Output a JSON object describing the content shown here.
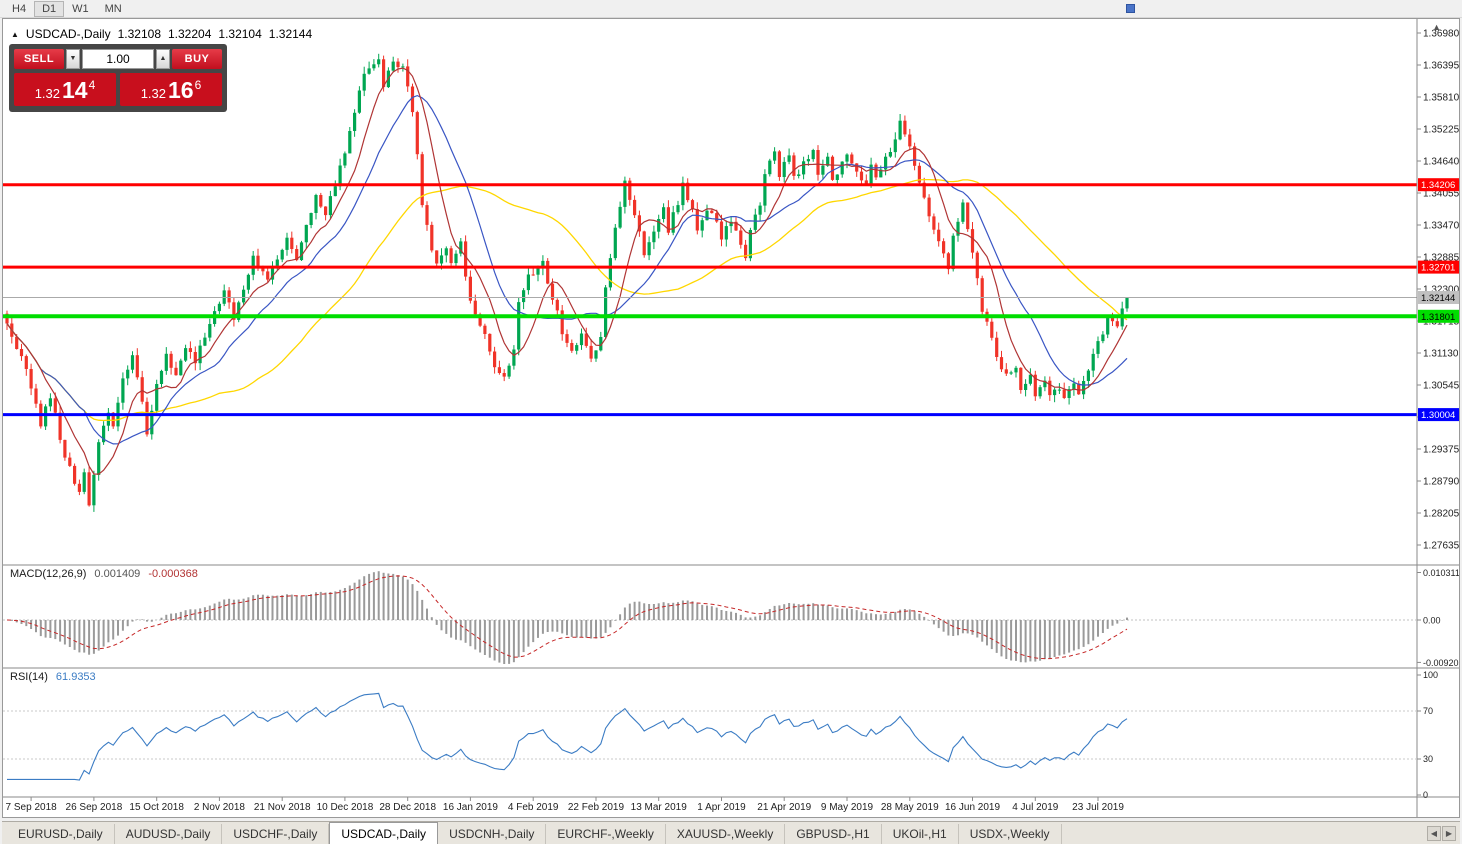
{
  "toolbar": {
    "timeframes": [
      {
        "label": "H4"
      },
      {
        "label": "D1"
      },
      {
        "label": "W1"
      },
      {
        "label": "MN"
      }
    ],
    "active_timeframe": "D1"
  },
  "window": {
    "title_symbol": "USDCAD-,Daily",
    "ohlc": {
      "open": "1.32108",
      "high": "1.32204",
      "low": "1.32104",
      "close": "1.32144"
    }
  },
  "trade_panel": {
    "sell_label": "SELL",
    "buy_label": "BUY",
    "volume": "1.00",
    "sell_price_main": "1.32",
    "sell_price_big": "14",
    "sell_price_sup": "4",
    "buy_price_main": "1.32",
    "buy_price_big": "16",
    "buy_price_sup": "6"
  },
  "price_axis": {
    "labels": [
      "1.36980",
      "1.36395",
      "1.35810",
      "1.35225",
      "1.34640",
      "1.34055",
      "1.33470",
      "1.32885",
      "1.32300",
      "1.31715",
      "1.31130",
      "1.30545",
      "1.29960",
      "1.29375",
      "1.28790",
      "1.28205",
      "1.27635"
    ]
  },
  "levels": [
    {
      "price": 1.34206,
      "label": "1.34206",
      "color": "#ff0000",
      "width": 3,
      "text": "#ffffff"
    },
    {
      "price": 1.32701,
      "label": "1.32701",
      "color": "#ff0000",
      "width": 3,
      "text": "#ffffff"
    },
    {
      "price": 1.31801,
      "label": "1.31801",
      "color": "#00dd00",
      "width": 4,
      "text": "#000000"
    },
    {
      "price": 1.30004,
      "label": "1.30004",
      "color": "#0000ff",
      "width": 3,
      "text": "#ffffff"
    }
  ],
  "current_price": {
    "value": 1.32144,
    "label": "1.32144"
  },
  "date_axis": [
    "7 Sep 2018",
    "26 Sep 2018",
    "15 Oct 2018",
    "2 Nov 2018",
    "21 Nov 2018",
    "10 Dec 2018",
    "28 Dec 2018",
    "16 Jan 2019",
    "4 Feb 2019",
    "22 Feb 2019",
    "13 Mar 2019",
    "1 Apr 2019",
    "21 Apr 2019",
    "9 May 2019",
    "28 May 2019",
    "16 Jun 2019",
    "4 Jul 2019",
    "23 Jul 2019"
  ],
  "macd": {
    "name": "MACD(12,26,9)",
    "value_main": "0.001409",
    "value_signal": "-0.000368",
    "axis_labels": [
      {
        "v": 0.010311,
        "label": "0.010311"
      },
      {
        "v": 0,
        "label": "0.00"
      },
      {
        "v": -0.009203,
        "label": "-0.009203"
      }
    ]
  },
  "rsi": {
    "name": "RSI(14)",
    "value": "61.9353",
    "axis_labels": [
      {
        "v": 100,
        "label": "100"
      },
      {
        "v": 70,
        "label": "70"
      },
      {
        "v": 30,
        "label": "30"
      },
      {
        "v": 0,
        "label": "0"
      }
    ],
    "bands": [
      70,
      30
    ]
  },
  "tabs": [
    {
      "label": "EURUSD-,Daily",
      "active": false
    },
    {
      "label": "AUDUSD-,Daily",
      "active": false
    },
    {
      "label": "USDCHF-,Daily",
      "active": false
    },
    {
      "label": "USDCAD-,Daily",
      "active": true
    },
    {
      "label": "USDCNH-,Daily",
      "active": false
    },
    {
      "label": "EURCHF-,Weekly",
      "active": false
    },
    {
      "label": "XAUUSD-,Weekly",
      "active": false
    },
    {
      "label": "GBPUSD-,H1",
      "active": false
    },
    {
      "label": "UKOil-,H1",
      "active": false
    },
    {
      "label": "USDX-,Weekly",
      "active": false
    }
  ],
  "chart_data": {
    "type": "candlestick",
    "symbol": "USDCAD",
    "timeframe": "Daily",
    "candle_count": 233,
    "y_range": [
      1.274,
      1.3722
    ],
    "colors": {
      "up": "#00a651",
      "down": "#f03328"
    },
    "indicators": {
      "ma_fast": {
        "period": 8,
        "color": "#b03535"
      },
      "ma_mid": {
        "period": 17,
        "color": "#3a56c4"
      },
      "ma_slow": {
        "period": 45,
        "color": "#ffd700"
      },
      "macd": [
        12,
        26,
        9
      ],
      "rsi": 14
    },
    "price_anchors": [
      [
        0,
        1.3165
      ],
      [
        4,
        1.3085
      ],
      [
        7,
        1.2985
      ],
      [
        9,
        1.3035
      ],
      [
        12,
        1.2925
      ],
      [
        15,
        1.2855
      ],
      [
        16,
        1.2895
      ],
      [
        17,
        1.283
      ],
      [
        19,
        1.295
      ],
      [
        21,
        1.301
      ],
      [
        22,
        1.2985
      ],
      [
        24,
        1.306
      ],
      [
        26,
        1.3115
      ],
      [
        28,
        1.302
      ],
      [
        29,
        1.2965
      ],
      [
        31,
        1.306
      ],
      [
        33,
        1.3105
      ],
      [
        35,
        1.3075
      ],
      [
        37,
        1.312
      ],
      [
        39,
        1.3095
      ],
      [
        41,
        1.3145
      ],
      [
        43,
        1.3185
      ],
      [
        45,
        1.323
      ],
      [
        47,
        1.3175
      ],
      [
        49,
        1.3235
      ],
      [
        51,
        1.3285
      ],
      [
        54,
        1.3245
      ],
      [
        56,
        1.329
      ],
      [
        58,
        1.3325
      ],
      [
        60,
        1.328
      ],
      [
        62,
        1.334
      ],
      [
        64,
        1.3395
      ],
      [
        66,
        1.3365
      ],
      [
        68,
        1.342
      ],
      [
        70,
        1.348
      ],
      [
        72,
        1.3555
      ],
      [
        74,
        1.362
      ],
      [
        77,
        1.3655
      ],
      [
        78,
        1.36
      ],
      [
        80,
        1.3645
      ],
      [
        82,
        1.363
      ],
      [
        84,
        1.356
      ],
      [
        85,
        1.348
      ],
      [
        86,
        1.339
      ],
      [
        88,
        1.3305
      ],
      [
        89,
        1.327
      ],
      [
        91,
        1.33
      ],
      [
        92,
        1.327
      ],
      [
        94,
        1.331
      ],
      [
        95,
        1.325
      ],
      [
        97,
        1.318
      ],
      [
        99,
        1.3145
      ],
      [
        101,
        1.309
      ],
      [
        103,
        1.3065
      ],
      [
        105,
        1.312
      ],
      [
        106,
        1.32
      ],
      [
        108,
        1.325
      ],
      [
        111,
        1.328
      ],
      [
        112,
        1.324
      ],
      [
        114,
        1.319
      ],
      [
        115,
        1.3145
      ],
      [
        117,
        1.311
      ],
      [
        119,
        1.315
      ],
      [
        121,
        1.31
      ],
      [
        123,
        1.314
      ],
      [
        124,
        1.323
      ],
      [
        126,
        1.334
      ],
      [
        128,
        1.343
      ],
      [
        129,
        1.339
      ],
      [
        131,
        1.333
      ],
      [
        132,
        1.329
      ],
      [
        134,
        1.334
      ],
      [
        136,
        1.3385
      ],
      [
        137,
        1.334
      ],
      [
        139,
        1.339
      ],
      [
        140,
        1.3425
      ],
      [
        142,
        1.337
      ],
      [
        143,
        1.334
      ],
      [
        145,
        1.338
      ],
      [
        147,
        1.335
      ],
      [
        148,
        1.332
      ],
      [
        150,
        1.336
      ],
      [
        151,
        1.333
      ],
      [
        153,
        1.329
      ],
      [
        154,
        1.334
      ],
      [
        156,
        1.339
      ],
      [
        157,
        1.344
      ],
      [
        159,
        1.348
      ],
      [
        160,
        1.344
      ],
      [
        162,
        1.347
      ],
      [
        163,
        1.343
      ],
      [
        165,
        1.346
      ],
      [
        167,
        1.348
      ],
      [
        168,
        1.344
      ],
      [
        170,
        1.347
      ],
      [
        171,
        1.343
      ],
      [
        173,
        1.346
      ],
      [
        174,
        1.348
      ],
      [
        176,
        1.344
      ],
      [
        178,
        1.342
      ],
      [
        179,
        1.345
      ],
      [
        180,
        1.343
      ],
      [
        182,
        1.347
      ],
      [
        184,
        1.35
      ],
      [
        185,
        1.354
      ],
      [
        187,
        1.349
      ],
      [
        188,
        1.345
      ],
      [
        190,
        1.34
      ],
      [
        191,
        1.337
      ],
      [
        193,
        1.331
      ],
      [
        195,
        1.327
      ],
      [
        196,
        1.332
      ],
      [
        198,
        1.339
      ],
      [
        199,
        1.334
      ],
      [
        201,
        1.325
      ],
      [
        202,
        1.319
      ],
      [
        204,
        1.314
      ],
      [
        205,
        1.31
      ],
      [
        207,
        1.307
      ],
      [
        209,
        1.309
      ],
      [
        210,
        1.305
      ],
      [
        212,
        1.307
      ],
      [
        213,
        1.304
      ],
      [
        215,
        1.306
      ],
      [
        216,
        1.303
      ],
      [
        218,
        1.305
      ],
      [
        219,
        1.303
      ],
      [
        221,
        1.306
      ],
      [
        222,
        1.304
      ],
      [
        224,
        1.308
      ],
      [
        225,
        1.311
      ],
      [
        227,
        1.315
      ],
      [
        228,
        1.317
      ],
      [
        230,
        1.316
      ],
      [
        232,
        1.32144
      ]
    ]
  }
}
